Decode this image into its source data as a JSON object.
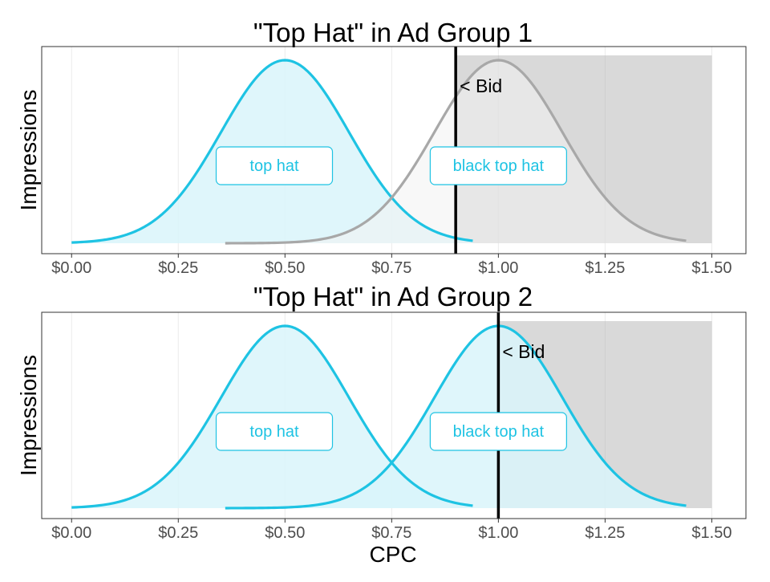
{
  "chart_data": [
    {
      "type": "area",
      "title": "\"Top Hat\" in Ad Group 1",
      "ylabel": "Impressions",
      "xlabel": "",
      "xlim": [
        -0.07,
        1.58
      ],
      "xticks": [
        0.0,
        0.25,
        0.5,
        0.75,
        1.0,
        1.25,
        1.5
      ],
      "xtick_labels": [
        "$0.00",
        "$0.25",
        "$0.50",
        "$0.75",
        "$1.00",
        "$1.25",
        "$1.50"
      ],
      "grid": true,
      "bid": 0.9,
      "bid_label": "< Bid",
      "shaded_region": [
        0.9,
        1.5
      ],
      "series": [
        {
          "name": "top hat",
          "mean": 0.5,
          "sd": 0.15,
          "x_range": [
            0.0,
            0.94
          ],
          "color": "#1ec3e3",
          "fill": "#d9f4fa",
          "active": true,
          "label_x": 0.475
        },
        {
          "name": "black top hat",
          "mean": 1.0,
          "sd": 0.15,
          "x_range": [
            0.36,
            1.44
          ],
          "color": "#a8a8a8",
          "fill": "#f2f2f2",
          "active": false,
          "label_x": 1.0
        }
      ]
    },
    {
      "type": "area",
      "title": "\"Top Hat\" in Ad Group 2",
      "ylabel": "Impressions",
      "xlabel": "CPC",
      "xlim": [
        -0.07,
        1.58
      ],
      "xticks": [
        0.0,
        0.25,
        0.5,
        0.75,
        1.0,
        1.25,
        1.5
      ],
      "xtick_labels": [
        "$0.00",
        "$0.25",
        "$0.50",
        "$0.75",
        "$1.00",
        "$1.25",
        "$1.50"
      ],
      "grid": true,
      "bid": 1.0,
      "bid_label": "< Bid",
      "shaded_region": [
        1.0,
        1.5
      ],
      "series": [
        {
          "name": "top hat",
          "mean": 0.5,
          "sd": 0.15,
          "x_range": [
            0.0,
            0.94
          ],
          "color": "#1ec3e3",
          "fill": "#d9f4fa",
          "active": true,
          "label_x": 0.475
        },
        {
          "name": "black top hat",
          "mean": 1.0,
          "sd": 0.15,
          "x_range": [
            0.36,
            1.44
          ],
          "color": "#1ec3e3",
          "fill": "#d9f4fa",
          "active": true,
          "label_x": 1.0
        }
      ]
    }
  ]
}
